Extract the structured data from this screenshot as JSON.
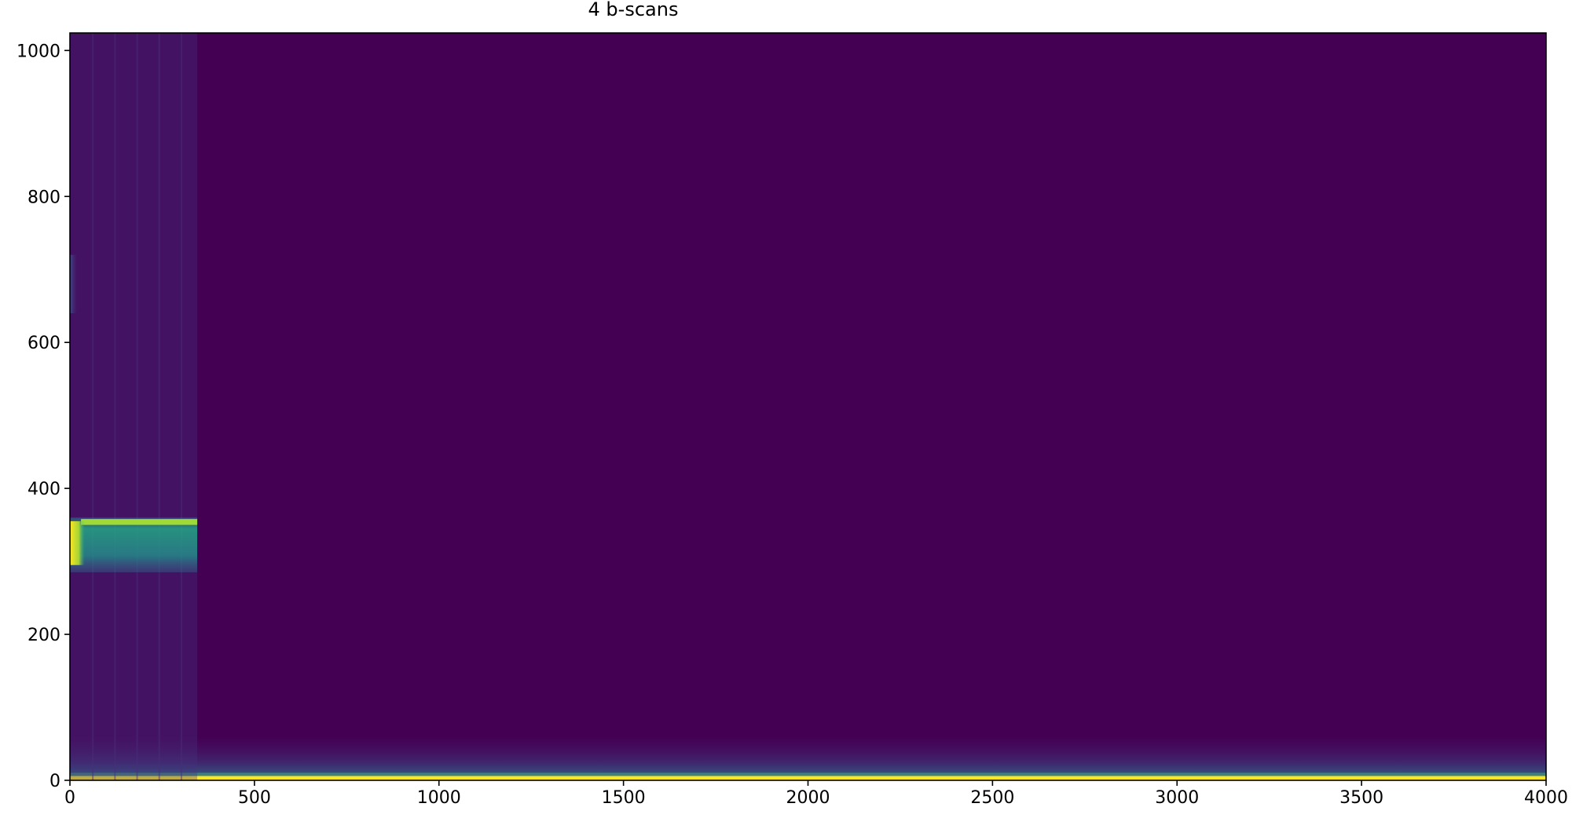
{
  "chart_data": {
    "type": "heatmap",
    "title": "4 b-scans",
    "xlabel": "",
    "ylabel": "",
    "xlim": [
      0,
      4000
    ],
    "ylim": [
      0,
      1024
    ],
    "x_ticks": [
      0,
      500,
      1000,
      1500,
      2000,
      2500,
      3000,
      3500,
      4000
    ],
    "y_ticks": [
      0,
      200,
      400,
      600,
      800,
      1000
    ],
    "colormap": "viridis",
    "background_color": "#440154",
    "grid": false,
    "legend": "none",
    "features": [
      {
        "kind": "surface-reflection-line",
        "x_range": [
          0,
          4000
        ],
        "y_range": [
          0,
          6
        ],
        "intensity": 1.0
      },
      {
        "kind": "near-surface-glow",
        "x_range": [
          0,
          4000
        ],
        "y_range": [
          6,
          60
        ],
        "intensity": 0.25
      },
      {
        "kind": "scan-region-tint",
        "x_range": [
          0,
          345
        ],
        "y_range": [
          0,
          1024
        ],
        "intensity": 0.05
      },
      {
        "kind": "reflector-band",
        "x_range": [
          0,
          345
        ],
        "y_range": [
          285,
          360
        ],
        "intensity": 0.55
      },
      {
        "kind": "reflector-top-edge",
        "x_range": [
          30,
          345
        ],
        "y_range": [
          350,
          358
        ],
        "intensity": 0.85
      },
      {
        "kind": "bright-spot",
        "x_range": [
          0,
          40
        ],
        "y_range": [
          295,
          355
        ],
        "intensity": 0.95
      },
      {
        "kind": "faint-spot",
        "x_range": [
          0,
          20
        ],
        "y_range": [
          640,
          720
        ],
        "intensity": 0.2
      }
    ]
  }
}
